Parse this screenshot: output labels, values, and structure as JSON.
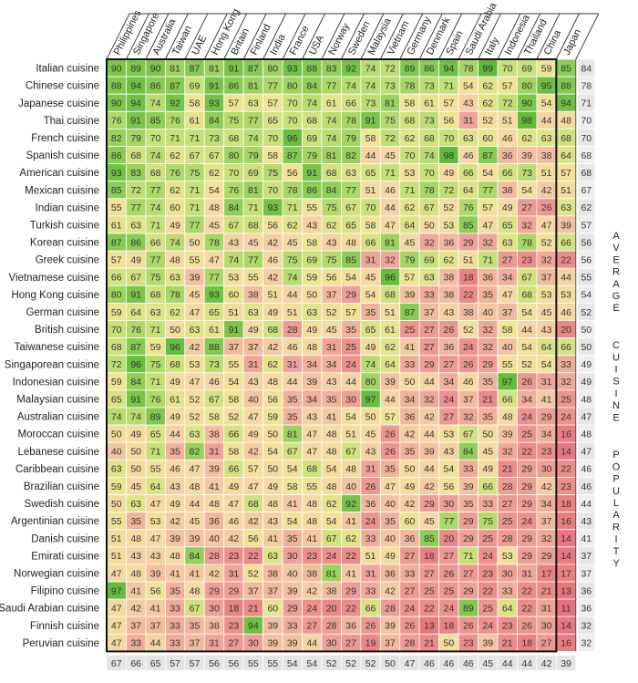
{
  "chart_data": {
    "type": "heatmap",
    "side_title": "AVERAGE CUISINE POPULARITY",
    "columns": [
      "Philippines",
      "Singapore",
      "Australia",
      "Taiwan",
      "UAE",
      "Hong Kong",
      "Britain",
      "Finland",
      "India",
      "France",
      "USA",
      "Norway",
      "Sweden",
      "Malaysia",
      "Vietnam",
      "Germany",
      "Denmark",
      "Spain",
      "Saudi Arabia",
      "Italy",
      "Indonesia",
      "Thailand",
      "China",
      "Japan"
    ],
    "rows": [
      {
        "name": "Italian cuisine",
        "values": [
          90,
          89,
          90,
          81,
          87,
          81,
          91,
          87,
          80,
          93,
          88,
          83,
          92,
          74,
          72,
          89,
          86,
          94,
          78,
          99,
          70,
          69,
          59,
          85
        ],
        "avg": 84
      },
      {
        "name": "Chinese cuisine",
        "values": [
          88,
          94,
          86,
          87,
          69,
          91,
          86,
          81,
          77,
          80,
          84,
          77,
          74,
          74,
          73,
          78,
          73,
          71,
          54,
          62,
          57,
          80,
          95,
          88
        ],
        "avg": 78
      },
      {
        "name": "Japanese cuisine",
        "values": [
          90,
          94,
          74,
          92,
          58,
          93,
          57,
          63,
          57,
          70,
          74,
          61,
          66,
          73,
          81,
          58,
          61,
          57,
          43,
          62,
          72,
          90,
          54,
          94
        ],
        "avg": 71
      },
      {
        "name": "Thai cuisine",
        "values": [
          76,
          91,
          85,
          76,
          61,
          84,
          75,
          77,
          65,
          70,
          68,
          74,
          78,
          91,
          75,
          68,
          73,
          56,
          31,
          52,
          51,
          98,
          44,
          48
        ],
        "avg": 70
      },
      {
        "name": "French cuisine",
        "values": [
          82,
          79,
          70,
          71,
          71,
          73,
          68,
          74,
          70,
          96,
          69,
          74,
          79,
          58,
          72,
          62,
          68,
          70,
          63,
          60,
          46,
          62,
          63,
          68
        ],
        "avg": 70
      },
      {
        "name": "Spanish cuisine",
        "values": [
          86,
          68,
          74,
          62,
          67,
          67,
          80,
          79,
          58,
          87,
          79,
          81,
          82,
          44,
          45,
          70,
          74,
          98,
          46,
          87,
          36,
          39,
          38,
          64
        ],
        "avg": 68
      },
      {
        "name": "American cuisine",
        "values": [
          93,
          83,
          68,
          76,
          75,
          62,
          70,
          69,
          75,
          56,
          91,
          68,
          63,
          65,
          71,
          53,
          70,
          49,
          66,
          54,
          66,
          73,
          51,
          57
        ],
        "avg": 68
      },
      {
        "name": "Mexican cuisine",
        "values": [
          85,
          72,
          77,
          62,
          71,
          54,
          76,
          81,
          70,
          78,
          86,
          84,
          77,
          51,
          46,
          71,
          78,
          72,
          64,
          77,
          38,
          54,
          42,
          51
        ],
        "avg": 67
      },
      {
        "name": "Indian cuisine",
        "values": [
          55,
          77,
          74,
          60,
          71,
          48,
          84,
          71,
          93,
          71,
          55,
          75,
          67,
          70,
          44,
          62,
          67,
          52,
          76,
          57,
          49,
          27,
          26,
          63
        ],
        "avg": 62
      },
      {
        "name": "Turkish cuisine",
        "values": [
          61,
          63,
          71,
          49,
          77,
          45,
          67,
          68,
          56,
          62,
          43,
          62,
          65,
          58,
          47,
          64,
          50,
          53,
          85,
          47,
          65,
          32,
          47,
          39
        ],
        "avg": 57
      },
      {
        "name": "Korean cuisine",
        "values": [
          87,
          86,
          66,
          74,
          50,
          78,
          43,
          45,
          42,
          45,
          58,
          43,
          48,
          66,
          81,
          45,
          32,
          36,
          29,
          32,
          63,
          78,
          52,
          66
        ],
        "avg": 56
      },
      {
        "name": "Greek cuisine",
        "values": [
          57,
          49,
          77,
          48,
          55,
          47,
          74,
          77,
          46,
          75,
          69,
          75,
          85,
          31,
          32,
          79,
          69,
          62,
          51,
          71,
          27,
          23,
          32,
          22
        ],
        "avg": 56
      },
      {
        "name": "Vietnamese cuisine",
        "values": [
          66,
          67,
          75,
          63,
          39,
          77,
          53,
          55,
          42,
          74,
          59,
          56,
          54,
          45,
          96,
          57,
          63,
          38,
          18,
          36,
          34,
          67,
          37,
          44
        ],
        "avg": 55
      },
      {
        "name": "Hong Kong cuisine",
        "values": [
          80,
          91,
          68,
          78,
          45,
          93,
          60,
          38,
          51,
          44,
          50,
          37,
          29,
          54,
          68,
          39,
          33,
          38,
          22,
          35,
          47,
          68,
          53,
          53
        ],
        "avg": 54
      },
      {
        "name": "German cuisine",
        "values": [
          59,
          64,
          63,
          62,
          47,
          65,
          51,
          63,
          49,
          51,
          63,
          52,
          57,
          35,
          51,
          87,
          37,
          43,
          38,
          40,
          37,
          54,
          45,
          46
        ],
        "avg": 52
      },
      {
        "name": "British cuisine",
        "values": [
          70,
          76,
          71,
          50,
          63,
          61,
          91,
          49,
          68,
          28,
          49,
          45,
          35,
          65,
          61,
          25,
          27,
          26,
          52,
          32,
          58,
          44,
          43,
          20
        ],
        "avg": 50
      },
      {
        "name": "Taiwanese cuisine",
        "values": [
          68,
          87,
          59,
          96,
          42,
          88,
          37,
          37,
          42,
          46,
          48,
          31,
          25,
          49,
          62,
          41,
          27,
          36,
          24,
          32,
          40,
          54,
          64,
          66
        ],
        "avg": 50
      },
      {
        "name": "Singaporean cuisine",
        "values": [
          72,
          96,
          75,
          68,
          53,
          73,
          55,
          31,
          62,
          31,
          34,
          34,
          24,
          74,
          64,
          33,
          29,
          27,
          26,
          29,
          55,
          52,
          54,
          33
        ],
        "avg": 49
      },
      {
        "name": "Indonesian cuisine",
        "values": [
          59,
          84,
          71,
          49,
          47,
          46,
          54,
          43,
          48,
          44,
          39,
          43,
          44,
          80,
          39,
          50,
          44,
          34,
          46,
          35,
          97,
          26,
          31,
          32
        ],
        "avg": 49
      },
      {
        "name": "Malaysian cuisine",
        "values": [
          65,
          91,
          76,
          61,
          52,
          67,
          58,
          40,
          56,
          35,
          34,
          35,
          30,
          97,
          44,
          34,
          32,
          24,
          37,
          21,
          66,
          34,
          41,
          25
        ],
        "avg": 48
      },
      {
        "name": "Australian cuisine",
        "values": [
          74,
          74,
          89,
          49,
          52,
          58,
          52,
          47,
          59,
          35,
          43,
          41,
          54,
          50,
          57,
          36,
          42,
          27,
          32,
          35,
          48,
          24,
          29,
          24
        ],
        "avg": 47
      },
      {
        "name": "Moroccan cuisine",
        "values": [
          50,
          49,
          65,
          44,
          63,
          38,
          66,
          49,
          50,
          81,
          47,
          48,
          51,
          45,
          26,
          42,
          44,
          53,
          67,
          50,
          39,
          25,
          34,
          16
        ],
        "avg": 48
      },
      {
        "name": "Lebanese cuisine",
        "values": [
          40,
          50,
          71,
          35,
          82,
          31,
          58,
          42,
          54,
          67,
          47,
          48,
          67,
          43,
          26,
          35,
          39,
          43,
          84,
          45,
          32,
          22,
          23,
          14
        ],
        "avg": 47
      },
      {
        "name": "Caribbean cuisine",
        "values": [
          63,
          50,
          55,
          46,
          47,
          39,
          66,
          57,
          50,
          54,
          68,
          54,
          48,
          31,
          35,
          50,
          44,
          54,
          33,
          49,
          21,
          29,
          30,
          22
        ],
        "avg": 46
      },
      {
        "name": "Brazilian cuisine",
        "values": [
          59,
          45,
          64,
          43,
          48,
          41,
          49,
          47,
          49,
          58,
          55,
          48,
          40,
          26,
          47,
          49,
          42,
          56,
          39,
          66,
          28,
          29,
          42,
          23
        ],
        "avg": 46
      },
      {
        "name": "Swedish cuisine",
        "values": [
          50,
          63,
          47,
          49,
          44,
          48,
          47,
          68,
          48,
          41,
          48,
          62,
          92,
          36,
          40,
          42,
          29,
          30,
          35,
          33,
          27,
          29,
          34,
          18
        ],
        "avg": 44
      },
      {
        "name": "Argentinian cuisine",
        "values": [
          55,
          35,
          53,
          42,
          45,
          36,
          46,
          42,
          43,
          54,
          48,
          54,
          41,
          24,
          35,
          60,
          45,
          77,
          29,
          75,
          25,
          24,
          37,
          16
        ],
        "avg": 43
      },
      {
        "name": "Danish cuisine",
        "values": [
          51,
          48,
          47,
          39,
          39,
          40,
          42,
          56,
          41,
          35,
          41,
          67,
          62,
          33,
          40,
          36,
          85,
          20,
          29,
          25,
          28,
          29,
          32,
          14
        ],
        "avg": 41
      },
      {
        "name": "Emirati cuisine",
        "values": [
          51,
          43,
          43,
          48,
          84,
          28,
          23,
          22,
          63,
          30,
          23,
          24,
          22,
          51,
          49,
          27,
          18,
          27,
          71,
          24,
          53,
          29,
          29,
          14
        ],
        "avg": 37
      },
      {
        "name": "Norwegian cuisine",
        "values": [
          47,
          48,
          39,
          41,
          41,
          42,
          31,
          52,
          38,
          40,
          38,
          81,
          41,
          31,
          36,
          33,
          27,
          26,
          27,
          23,
          30,
          31,
          17,
          17
        ],
        "avg": 37
      },
      {
        "name": "Filipino cuisine",
        "values": [
          97,
          41,
          56,
          35,
          48,
          29,
          29,
          37,
          37,
          39,
          42,
          38,
          29,
          33,
          42,
          27,
          25,
          25,
          29,
          22,
          33,
          22,
          21,
          13
        ],
        "avg": 36
      },
      {
        "name": "Saudi Arabian cuisine",
        "values": [
          47,
          42,
          41,
          33,
          67,
          30,
          18,
          21,
          60,
          29,
          24,
          20,
          22,
          66,
          28,
          24,
          22,
          24,
          89,
          25,
          64,
          22,
          31,
          11
        ],
        "avg": 36
      },
      {
        "name": "Finnish cuisine",
        "values": [
          47,
          37,
          37,
          33,
          35,
          38,
          23,
          94,
          39,
          33,
          27,
          28,
          36,
          26,
          39,
          26,
          13,
          18,
          26,
          24,
          23,
          26,
          30,
          14
        ],
        "avg": 32
      },
      {
        "name": "Peruvian cuisine",
        "values": [
          47,
          33,
          44,
          33,
          37,
          31,
          27,
          30,
          39,
          39,
          44,
          30,
          27,
          19,
          37,
          28,
          21,
          50,
          23,
          39,
          21,
          18,
          27,
          16
        ],
        "avg": 32
      }
    ],
    "column_avgs": [
      67,
      66,
      65,
      57,
      57,
      56,
      56,
      55,
      55,
      54,
      54,
      52,
      52,
      52,
      50,
      47,
      46,
      46,
      46,
      45,
      44,
      44,
      42,
      39
    ]
  }
}
